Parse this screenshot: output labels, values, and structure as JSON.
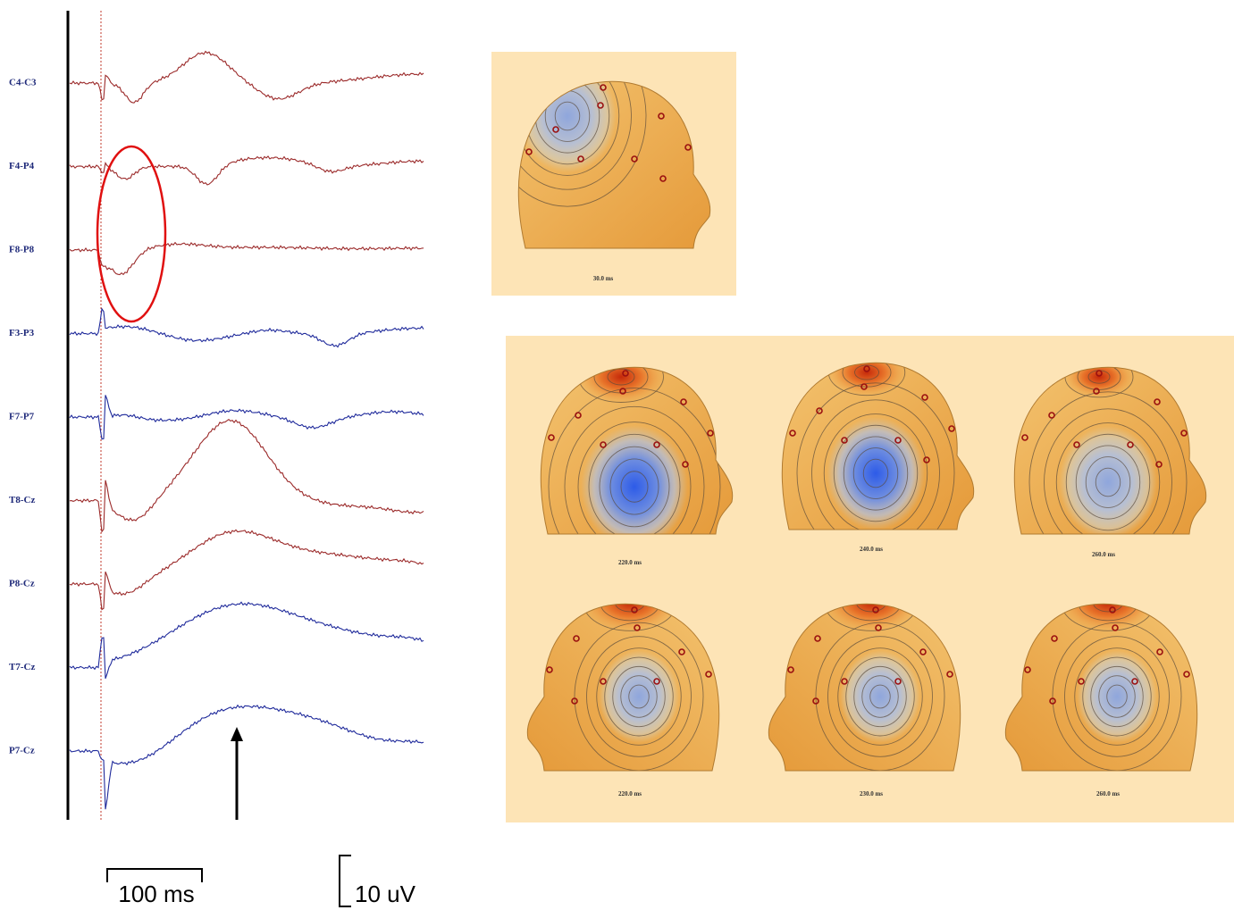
{
  "traces": {
    "channels": [
      {
        "label": "C4-C3",
        "color": "#9b2a2a"
      },
      {
        "label": "F4-P4",
        "color": "#9b2a2a"
      },
      {
        "label": "F8-P8",
        "color": "#9b2a2a"
      },
      {
        "label": "F3-P3",
        "color": "#1f2a9b"
      },
      {
        "label": "F7-P7",
        "color": "#1f2a9b"
      },
      {
        "label": "T8-Cz",
        "color": "#9b2a2a"
      },
      {
        "label": "P8-Cz",
        "color": "#9b2a2a"
      },
      {
        "label": "T7-Cz",
        "color": "#1f2a9b"
      },
      {
        "label": "P7-Cz",
        "color": "#1f2a9b"
      }
    ]
  },
  "scale_bars": {
    "time": "100 ms",
    "amplitude": "10 uV"
  },
  "head_maps": {
    "top": {
      "label": "30.0 ms"
    },
    "grid": [
      "220.0 ms",
      "240.0 ms",
      "260.0 ms",
      "220.0 ms",
      "230.0 ms",
      "260.0 ms"
    ]
  }
}
